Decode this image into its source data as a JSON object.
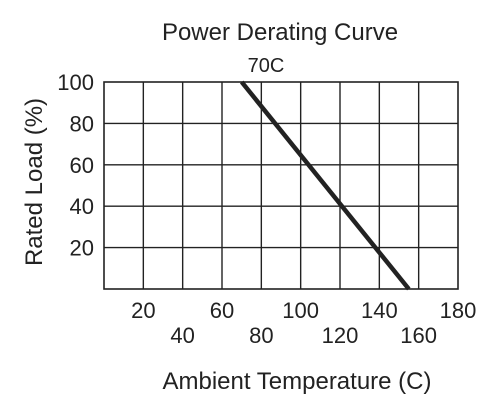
{
  "chart_data": {
    "type": "line",
    "title": "Power Derating Curve",
    "xlabel": "Ambient Temperature (C)",
    "ylabel": "Rated Load (%)",
    "xlim": [
      0,
      180
    ],
    "ylim": [
      0,
      100
    ],
    "x_ticks": [
      "20",
      "40",
      "60",
      "80",
      "100",
      "120",
      "140",
      "160",
      "180"
    ],
    "y_ticks": [
      "20",
      "40",
      "60",
      "80",
      "100"
    ],
    "grid": true,
    "series": [
      {
        "x": [
          70,
          155
        ],
        "y": [
          100,
          0
        ]
      }
    ],
    "annotations": [
      {
        "text": "70C",
        "x": 70,
        "y": 100
      }
    ],
    "colors": {
      "line": "#222222",
      "grid": "#222222"
    }
  }
}
